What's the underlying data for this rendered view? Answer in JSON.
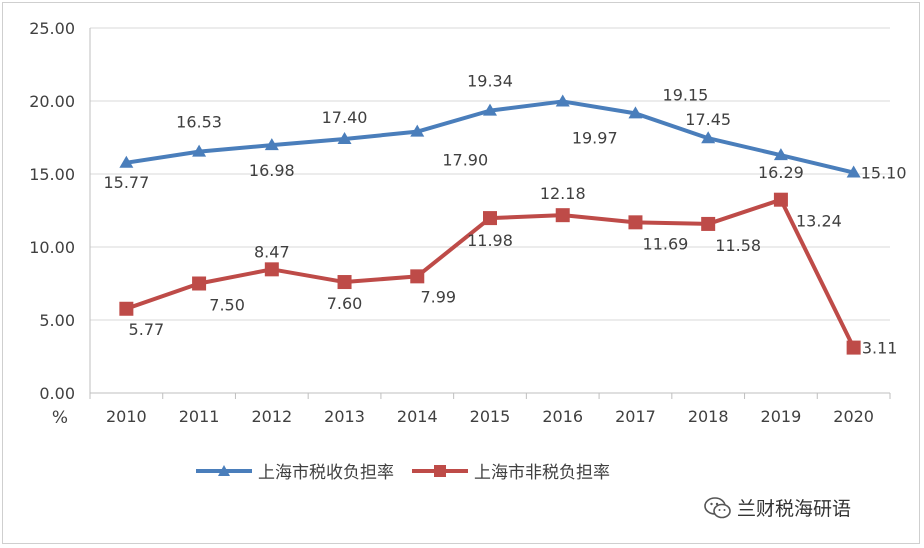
{
  "chart_data": {
    "type": "line",
    "categories": [
      "2010",
      "2011",
      "2012",
      "2013",
      "2014",
      "2015",
      "2016",
      "2017",
      "2018",
      "2019",
      "2020"
    ],
    "series": [
      {
        "name": "上海市税收负担率",
        "values": [
          15.77,
          16.53,
          16.98,
          17.4,
          17.9,
          19.34,
          19.97,
          19.15,
          17.45,
          16.29,
          15.1
        ],
        "labels": [
          "15.77",
          "16.53",
          "16.98",
          "17.40",
          "17.90",
          "19.34",
          "19.97",
          "19.15",
          "17.45",
          "16.29",
          "15.10"
        ],
        "color": "#4a7ebb",
        "marker": "triangle"
      },
      {
        "name": "上海市非税负担率",
        "values": [
          5.77,
          7.5,
          8.47,
          7.6,
          7.99,
          11.98,
          12.18,
          11.69,
          11.58,
          13.24,
          3.11
        ],
        "labels": [
          "5.77",
          "7.50",
          "8.47",
          "7.60",
          "7.99",
          "11.98",
          "12.18",
          "11.69",
          "11.58",
          "13.24",
          "3.11"
        ],
        "color": "#be4b48",
        "marker": "square"
      }
    ],
    "yticks": [
      "0.00",
      "5.00",
      "10.00",
      "15.00",
      "20.00",
      "25.00"
    ],
    "ylim": [
      0,
      25
    ],
    "yunit": "%",
    "grid": true,
    "legend_position": "bottom"
  },
  "watermark": {
    "text": "兰财税海研语",
    "icon": "wechat-icon"
  }
}
